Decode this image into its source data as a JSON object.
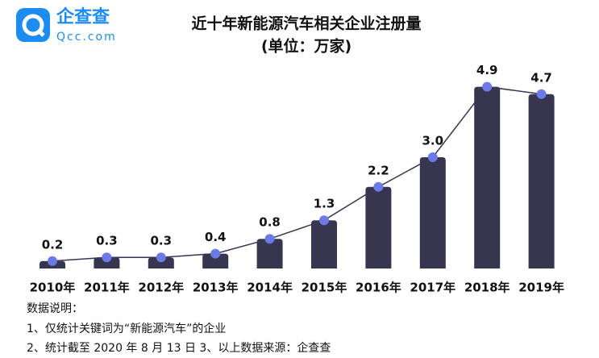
{
  "logo": {
    "name": "企查查",
    "site": "Qcc.com"
  },
  "chart_data": {
    "type": "bar",
    "title": "近十年新能源汽车相关企业注册量",
    "subtitle": "(单位：万家)",
    "categories": [
      "2010年",
      "2011年",
      "2012年",
      "2013年",
      "2014年",
      "2015年",
      "2016年",
      "2017年",
      "2018年",
      "2019年"
    ],
    "values": [
      0.2,
      0.3,
      0.3,
      0.4,
      0.8,
      1.3,
      2.2,
      3.0,
      4.9,
      4.7
    ],
    "value_labels": [
      "0.2",
      "0.3",
      "0.3",
      "0.4",
      "0.8",
      "1.3",
      "2.2",
      "3.0",
      "4.9",
      "4.7"
    ],
    "color": "#363650",
    "line_color": "#363650",
    "marker_color": "#6c7ae6"
  },
  "notes": [
    "数据说明：",
    "1、仅统计关键词为“新能源汽车”的企业",
    "2、统计截至 2020 年 8 月 13 日 3、以上数据来源：企查查"
  ]
}
